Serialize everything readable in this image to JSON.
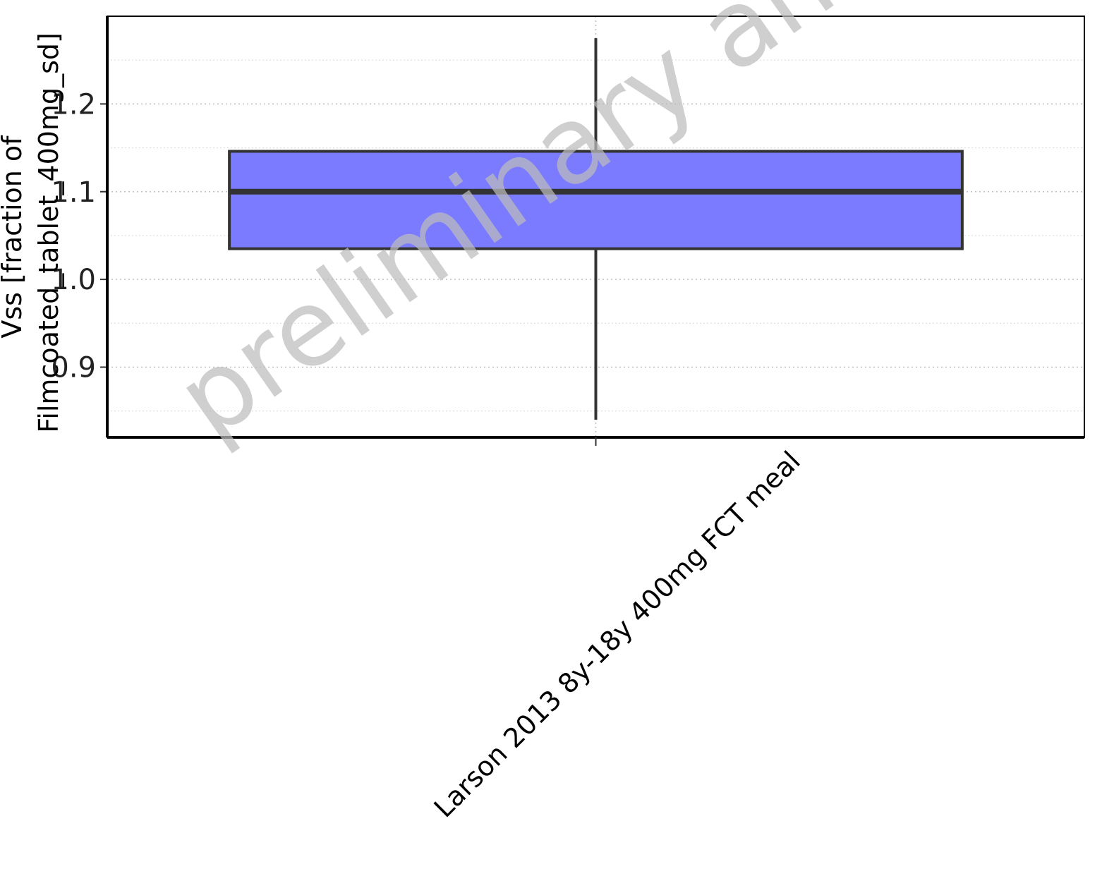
{
  "chart_data": {
    "type": "boxplot",
    "ylabel_lines": [
      "Vss [fraction of",
      "Filmcoated_tablet_400mg_sd]"
    ],
    "watermark": "preliminary analysis",
    "categories": [
      "Larson 2013 8y-18y 400mg FCT meal"
    ],
    "boxes": [
      {
        "category": "Larson 2013 8y-18y 400mg FCT meal",
        "whisker_low": 0.84,
        "q1": 1.035,
        "median": 1.1,
        "q3": 1.146,
        "whisker_high": 1.275
      }
    ],
    "y_ticks": [
      0.9,
      1.0,
      1.1,
      1.2
    ],
    "y_tick_labels": [
      "0.9",
      "1.0",
      "1.1",
      "1.2"
    ],
    "ylim": [
      0.82,
      1.3
    ],
    "grid": true,
    "colors": {
      "box_fill": "#7b7bff",
      "box_stroke": "#333333",
      "watermark": "#bdbdbd"
    }
  }
}
